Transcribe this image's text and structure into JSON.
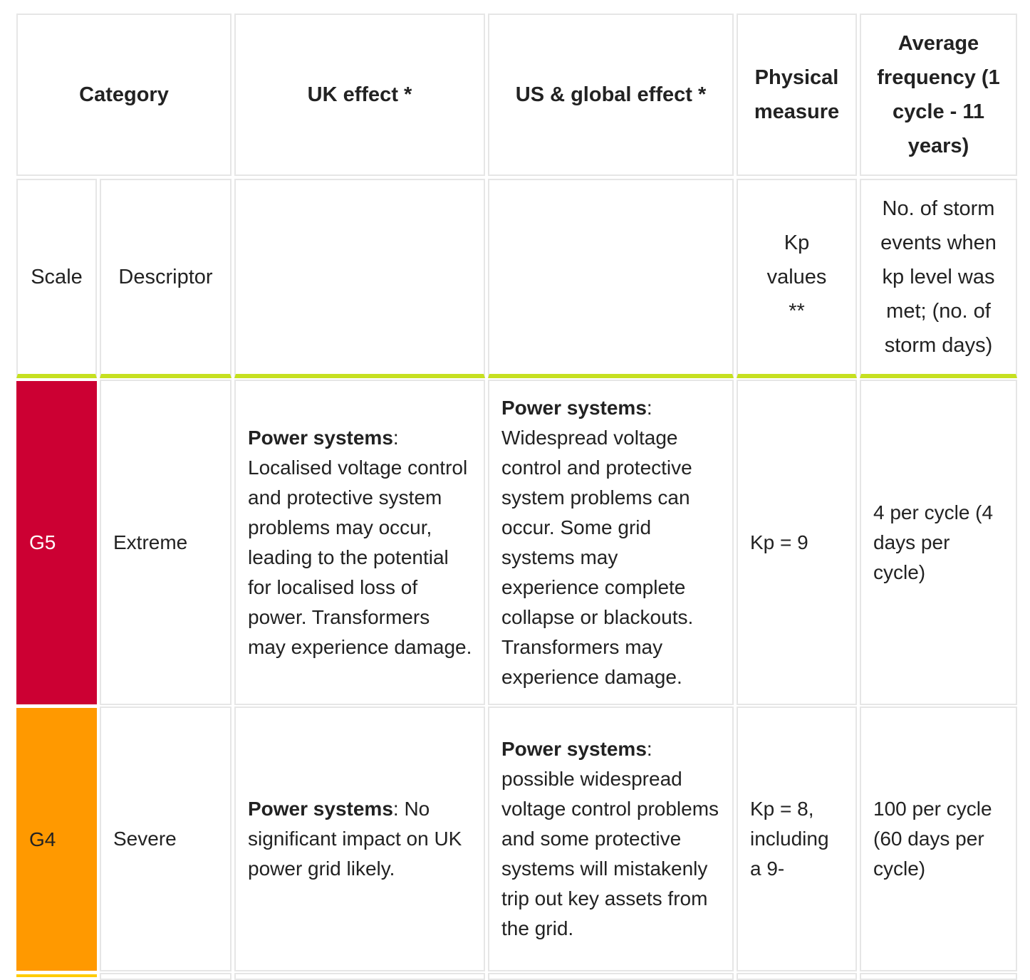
{
  "header": {
    "category": "Category",
    "uk_effect": "UK effect *",
    "us_effect": "US & global effect *",
    "physical_measure": "Physical measure",
    "average_frequency": "Average frequency (1 cycle - 11 years)"
  },
  "subheader": {
    "scale": "Scale",
    "descriptor": "Descriptor",
    "uk_effect": "",
    "us_effect": "",
    "physical_measure": "Kp values **",
    "average_frequency": "No. of storm events when kp level was met; (no. of storm days)"
  },
  "colors": {
    "g5": "#cc0033",
    "g4": "#ff9900",
    "g3": "#ffcc00",
    "accent_line": "#c6e020",
    "border": "#e6e6e6"
  },
  "rows": [
    {
      "scale": "G5",
      "descriptor": "Extreme",
      "uk_label": "Power systems",
      "uk_text": ": Localised voltage control and protective system problems may occur, leading to the potential for localised loss of power. Transformers may experience damage.",
      "us_label": "Power systems",
      "us_text": ": Widespread voltage control and protective system problems can occur. Some grid systems may experience complete collapse or blackouts. Transformers may experience damage.",
      "kp": "Kp = 9",
      "frequency": "4 per cycle (4 days per cycle)"
    },
    {
      "scale": "G4",
      "descriptor": "Severe",
      "uk_label": "Power systems",
      "uk_text": ": No significant impact on UK power grid likely.",
      "us_label": "Power systems",
      "us_text": ": possible widespread voltage control problems and some protective systems will mistakenly trip out key assets from the grid.",
      "kp": "Kp = 8, including a 9-",
      "frequency": "100 per cycle (60 days per cycle)"
    }
  ]
}
